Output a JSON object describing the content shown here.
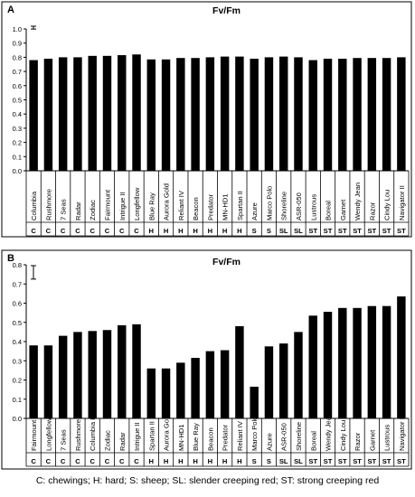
{
  "chart_data": [
    {
      "type": "bar",
      "panel_label": "A",
      "title": "Fv/Fm",
      "categories": [
        "Columbia",
        "Rushmore",
        "7 Seas",
        "Radar",
        "Zodiac",
        "Fairmount",
        "Intrigue II",
        "Longfellow",
        "Blue Ray",
        "Aurora Gold",
        "Reliant IV",
        "Beacon",
        "Predator",
        "MN-HD1",
        "Spartan II",
        "Azure",
        "Marco Polo",
        "Shoreline",
        "ASR-050",
        "Lustrous",
        "Boreal",
        "Garnet",
        "Wendy Jean",
        "Razor",
        "Cindy Lou",
        "Navigator II"
      ],
      "groups": [
        "C",
        "C",
        "C",
        "C",
        "C",
        "C",
        "C",
        "C",
        "H",
        "H",
        "H",
        "H",
        "H",
        "H",
        "H",
        "S",
        "S",
        "SL",
        "SL",
        "ST",
        "ST",
        "ST",
        "ST",
        "ST",
        "ST",
        "ST"
      ],
      "values": [
        0.78,
        0.79,
        0.8,
        0.8,
        0.81,
        0.81,
        0.815,
        0.82,
        0.785,
        0.785,
        0.795,
        0.795,
        0.8,
        0.805,
        0.805,
        0.79,
        0.8,
        0.805,
        0.8,
        0.78,
        0.79,
        0.79,
        0.795,
        0.795,
        0.795,
        0.8
      ],
      "ylim": [
        0,
        1.0
      ],
      "yticks": [
        "0.0",
        "0.1",
        "0.2",
        "0.3",
        "0.4",
        "0.5",
        "0.6",
        "0.7",
        "0.8",
        "0.9",
        "1.0"
      ],
      "error_bar": 0.02
    },
    {
      "type": "bar",
      "panel_label": "B",
      "title": "Fv/Fm",
      "categories": [
        "Fairmount",
        "Longfellow",
        "7 Seas",
        "Rushmore",
        "Columbia II",
        "Zodiac",
        "Radar",
        "Intrigue II",
        "Spartan II",
        "Aurora Gold",
        "MN-HD1",
        "Blue Ray",
        "Beacon",
        "Predator",
        "Reliant IV",
        "Marco Polo",
        "Azure",
        "ASR-050",
        "Shoreline",
        "Boreal",
        "Wendy Jean",
        "Cindy Lou",
        "Razor",
        "Garnet",
        "Lustrous",
        "Navigator II"
      ],
      "groups": [
        "C",
        "C",
        "C",
        "C",
        "C",
        "C",
        "C",
        "C",
        "H",
        "H",
        "H",
        "H",
        "H",
        "H",
        "H",
        "S",
        "S",
        "SL",
        "SL",
        "ST",
        "ST",
        "ST",
        "ST",
        "ST",
        "ST",
        "ST"
      ],
      "values": [
        0.38,
        0.38,
        0.43,
        0.45,
        0.455,
        0.46,
        0.485,
        0.49,
        0.26,
        0.26,
        0.29,
        0.315,
        0.35,
        0.355,
        0.48,
        0.165,
        0.375,
        0.39,
        0.45,
        0.535,
        0.555,
        0.575,
        0.575,
        0.585,
        0.585,
        0.635
      ],
      "ylim": [
        0,
        0.8
      ],
      "yticks": [
        "0.0",
        "0.1",
        "0.2",
        "0.3",
        "0.4",
        "0.5",
        "0.6",
        "0.7",
        "0.8"
      ],
      "error_bar": 0.07
    }
  ],
  "footer": "C: chewings; H: hard; S: sheep; SL: slender creeping red; ST: strong creeping red"
}
